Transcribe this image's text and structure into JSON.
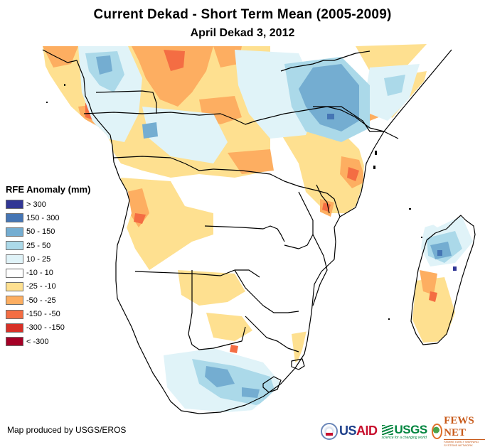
{
  "header": {
    "title": "Current Dekad - Short Term Mean (2005-2009)",
    "subtitle": "April Dekad 3, 2012"
  },
  "legend": {
    "title": "RFE Anomaly (mm)",
    "items": [
      {
        "label": "> 300",
        "color": "#313695"
      },
      {
        "label": "150 - 300",
        "color": "#4575b4"
      },
      {
        "label": "50 - 150",
        "color": "#74add1"
      },
      {
        "label": "25 - 50",
        "color": "#abd9e9"
      },
      {
        "label": "10 - 25",
        "color": "#e0f3f8"
      },
      {
        "label": "-10 - 10",
        "color": "#ffffff"
      },
      {
        "label": "-25 - -10",
        "color": "#fee090"
      },
      {
        "label": "-50 - -25",
        "color": "#fdae61"
      },
      {
        "label": "-150 - -50",
        "color": "#f46d43"
      },
      {
        "label": "-300 - -150",
        "color": "#d73027"
      },
      {
        "label": "< -300",
        "color": "#a50026"
      }
    ]
  },
  "credit": "Map produced by USGS/EROS",
  "logos": {
    "usaid": {
      "name_a": "US",
      "name_b": "AID",
      "tagline": "FROM THE AMERICAN PEOPLE"
    },
    "usgs": {
      "name": "USGS",
      "tagline": "science for a changing world"
    },
    "fewsnet": {
      "name": "FEWS NET",
      "tagline": "FAMINE EARLY WARNING SYSTEMS NETWORK"
    }
  },
  "map": {
    "region": "Central and Southern Africa",
    "variable": "RFE Anomaly (mm)"
  }
}
